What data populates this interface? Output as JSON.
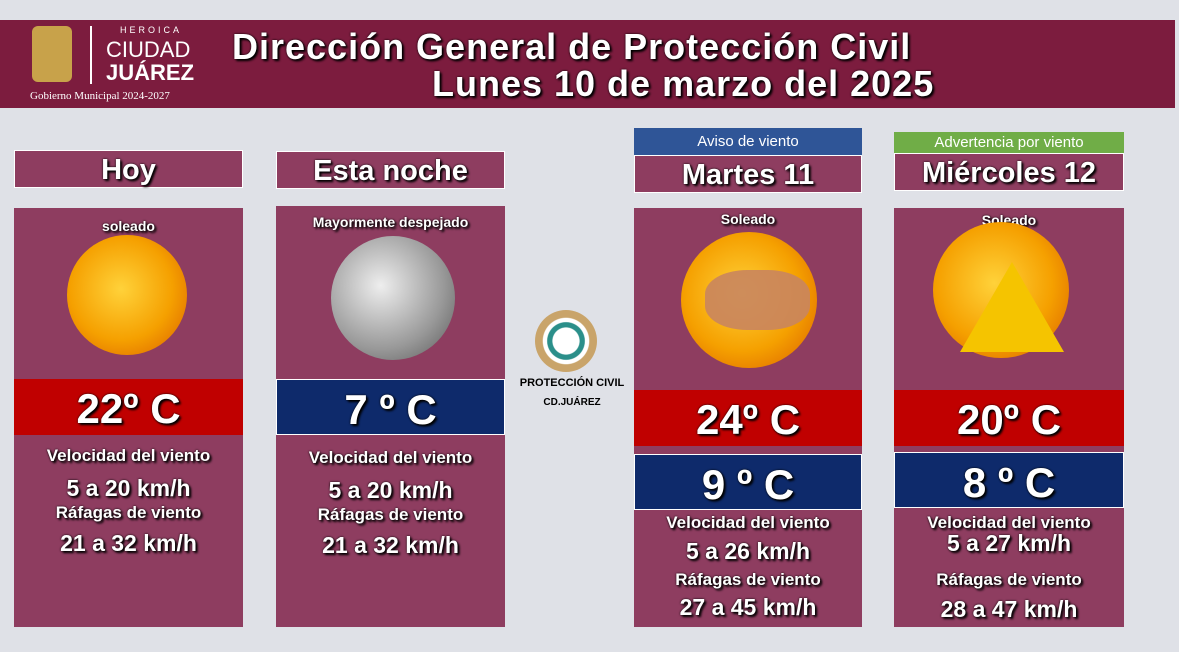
{
  "header": {
    "logo": {
      "top": "HEROICA",
      "city": "CIUDAD",
      "name": "JUÁREZ",
      "subtitle": "Gobierno Municipal 2024-2027"
    },
    "title": "Dirección General de Protección Civil",
    "date": "Lunes 10 de marzo del 2025"
  },
  "center_logo": {
    "name": "PROTECCIÓN CIVIL",
    "city": "CD.JUÁREZ"
  },
  "days": [
    {
      "label": "Hoy",
      "condition": "soleado",
      "high": "22º C",
      "wind_label": "Velocidad del viento",
      "wind": "5 a 20 km/h",
      "gust_label": "Ráfagas de viento",
      "gusts": "21 a 32 km/h"
    },
    {
      "label": "Esta noche",
      "condition": "Mayormente despejado",
      "low": "7 º C",
      "wind_label": "Velocidad del viento",
      "wind": "5 a 20 km/h",
      "gust_label": "Ráfagas de viento",
      "gusts": "21 a 32 km/h"
    },
    {
      "alert": "Aviso de viento",
      "label": "Martes 11",
      "condition": "Soleado",
      "high": "24º C",
      "low": "9 º C",
      "wind_label": "Velocidad del viento",
      "wind": "5 a 26 km/h",
      "gust_label": "Ráfagas de viento",
      "gusts": "27 a 45 km/h"
    },
    {
      "alert": "Advertencia por viento",
      "label": "Miércoles 12",
      "condition": "Soleado",
      "high": "20º C",
      "low": "8 º C",
      "wind_label": "Velocidad del viento",
      "wind": "5 a 27 km/h",
      "gust_label": "Ráfagas de viento",
      "gusts": "28 a 47 km/h"
    }
  ]
}
